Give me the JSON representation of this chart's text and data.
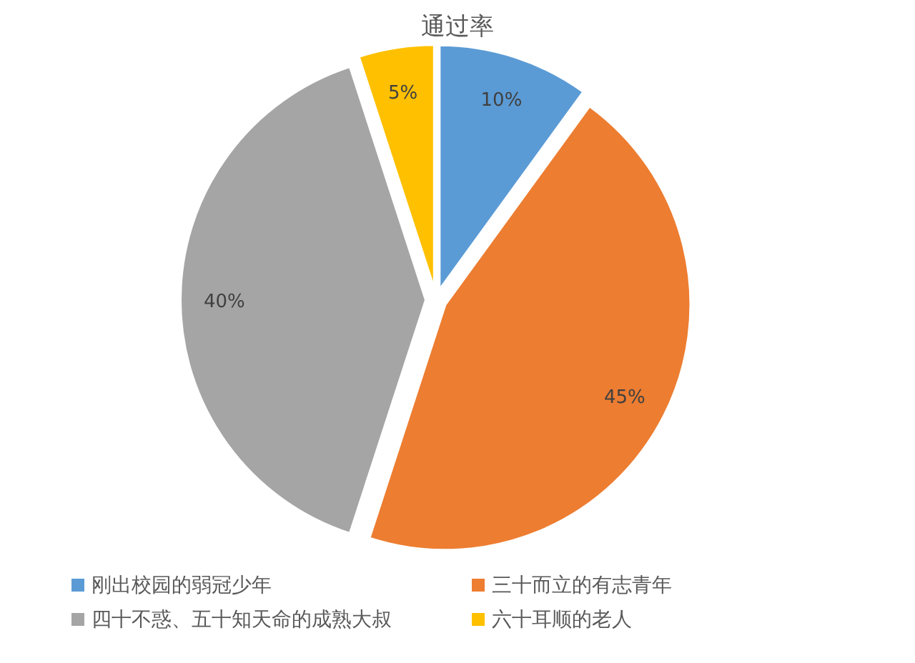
{
  "chart_data": {
    "type": "pie",
    "title": "通过率",
    "categories": [
      "刚出校园的弱冠少年",
      "三十而立的有志青年",
      "四十不惑、五十知天命的成熟大叔",
      "六十耳顺的老人"
    ],
    "values": [
      10,
      45,
      40,
      5
    ],
    "colors": [
      "#5b9bd5",
      "#ed7d31",
      "#a5a5a5",
      "#ffc000"
    ],
    "value_labels": [
      "10%",
      "45%",
      "40%",
      "5%"
    ],
    "legend": "bottom"
  }
}
